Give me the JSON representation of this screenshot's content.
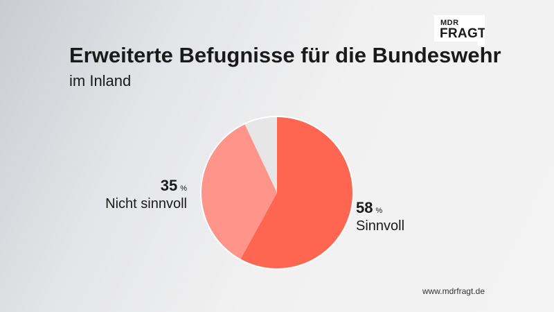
{
  "logo": {
    "line1": "MDR",
    "line2": "FRAGT"
  },
  "header": {
    "title": "Erweiterte Befugnisse für die Bundeswehr",
    "subtitle": "im Inland"
  },
  "labels": {
    "sinnvoll_value": "58",
    "sinnvoll_unit": "%",
    "sinnvoll_name": "Sinnvoll",
    "nicht_value": "35",
    "nicht_unit": "%",
    "nicht_name": "Nicht sinnvoll"
  },
  "footer": {
    "url": "www.mdrfragt.de"
  },
  "chart_data": {
    "type": "pie",
    "start_angle": "12 o'clock, clockwise",
    "slices": [
      {
        "label": "Sinnvoll",
        "value": 58,
        "color": "#ff6652"
      },
      {
        "label": "Nicht sinnvoll",
        "value": 35,
        "color": "#ff958a"
      },
      {
        "label": "",
        "value": 7,
        "color": "#e6e6e6"
      }
    ]
  }
}
